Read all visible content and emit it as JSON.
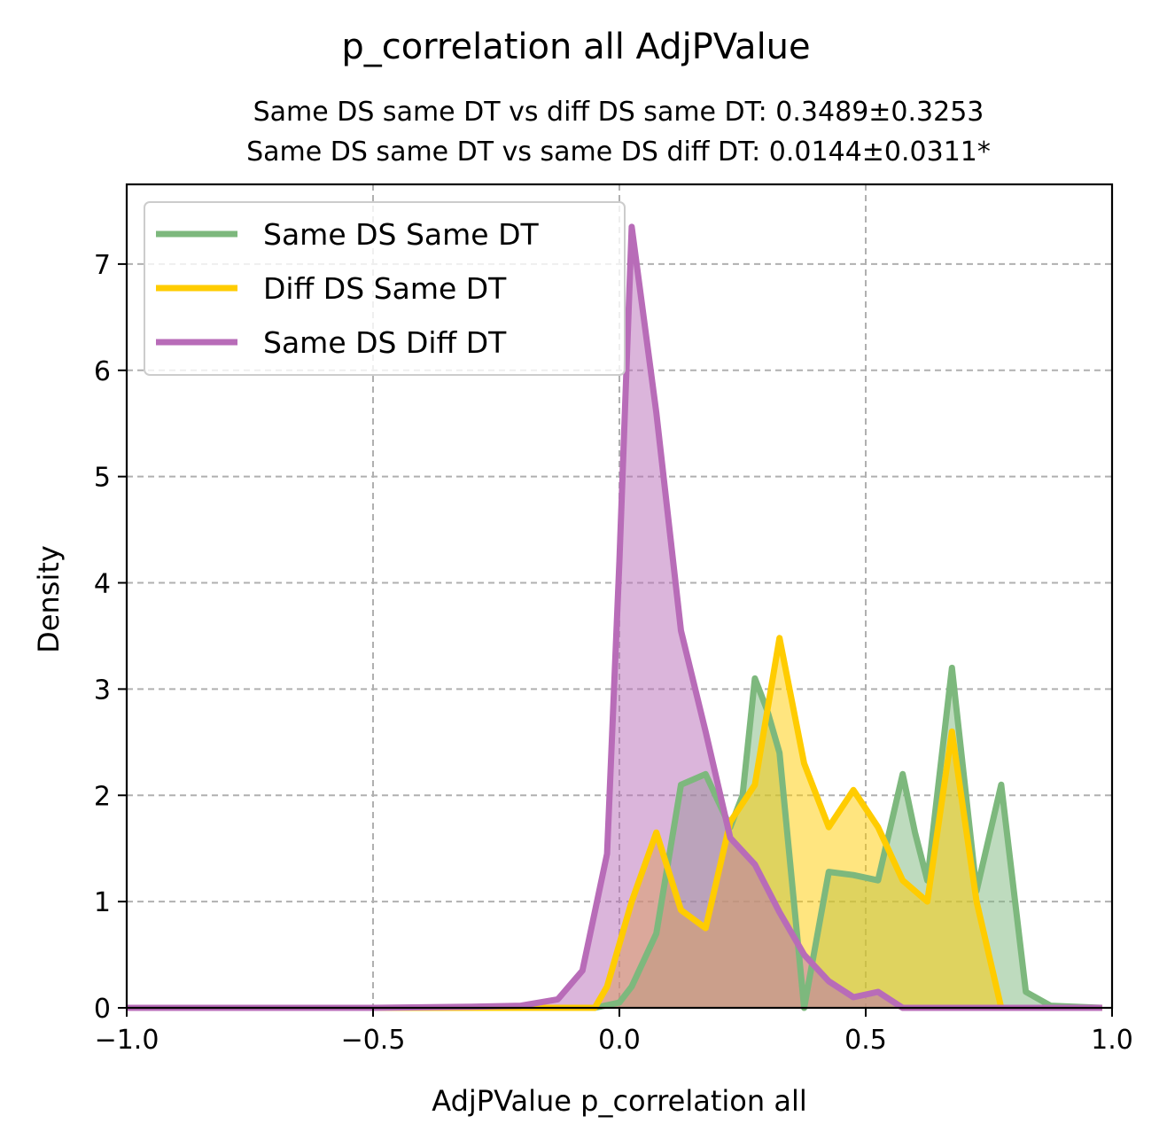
{
  "chart_data": {
    "type": "area",
    "title": "p_correlation all AdjPValue",
    "subtitle_lines": [
      "Same DS same DT vs diff DS same DT: 0.3489±0.3253",
      "Same DS same DT vs same DS diff DT: 0.0144±0.0311*"
    ],
    "xlabel": "AdjPValue p_correlation all",
    "ylabel": "Density",
    "xlim": [
      -1.0,
      1.0
    ],
    "ylim": [
      0,
      7.75
    ],
    "x_ticks": [
      -1.0,
      -0.5,
      0.0,
      0.5,
      1.0
    ],
    "x_tick_labels": [
      "−1.0",
      "−0.5",
      "0.0",
      "0.5",
      "1.0"
    ],
    "y_ticks": [
      0,
      1,
      2,
      3,
      4,
      5,
      6,
      7
    ],
    "y_tick_labels": [
      "0",
      "1",
      "2",
      "3",
      "4",
      "5",
      "6",
      "7"
    ],
    "grid": true,
    "legend_position": "top-left",
    "series": [
      {
        "name": "Same DS Same DT",
        "color": "#7db87d",
        "fill": "rgba(125,184,125,0.5)",
        "points": [
          [
            -1.0,
            0
          ],
          [
            -0.2,
            0
          ],
          [
            -0.05,
            0
          ],
          [
            0.0,
            0.05
          ],
          [
            0.025,
            0.2
          ],
          [
            0.075,
            0.7
          ],
          [
            0.125,
            2.1
          ],
          [
            0.175,
            2.2
          ],
          [
            0.225,
            1.7
          ],
          [
            0.25,
            2.0
          ],
          [
            0.275,
            3.1
          ],
          [
            0.3,
            2.8
          ],
          [
            0.325,
            2.4
          ],
          [
            0.375,
            0
          ],
          [
            0.425,
            1.28
          ],
          [
            0.475,
            1.25
          ],
          [
            0.525,
            1.2
          ],
          [
            0.575,
            2.2
          ],
          [
            0.6,
            1.65
          ],
          [
            0.625,
            1.2
          ],
          [
            0.675,
            3.2
          ],
          [
            0.725,
            1.1
          ],
          [
            0.775,
            2.1
          ],
          [
            0.825,
            0.15
          ],
          [
            0.875,
            0.02
          ],
          [
            0.98,
            0
          ]
        ]
      },
      {
        "name": "Diff DS Same DT",
        "color": "#ffcc00",
        "fill": "rgba(255,204,0,0.5)",
        "points": [
          [
            -1.0,
            0
          ],
          [
            -0.1,
            0
          ],
          [
            -0.05,
            0
          ],
          [
            -0.025,
            0.2
          ],
          [
            0.025,
            1.0
          ],
          [
            0.075,
            1.65
          ],
          [
            0.125,
            0.92
          ],
          [
            0.175,
            0.75
          ],
          [
            0.225,
            1.75
          ],
          [
            0.275,
            2.1
          ],
          [
            0.325,
            3.48
          ],
          [
            0.375,
            2.3
          ],
          [
            0.425,
            1.7
          ],
          [
            0.475,
            2.05
          ],
          [
            0.525,
            1.7
          ],
          [
            0.575,
            1.2
          ],
          [
            0.625,
            1.0
          ],
          [
            0.675,
            2.6
          ],
          [
            0.725,
            1.0
          ],
          [
            0.775,
            0.0
          ],
          [
            0.98,
            0
          ]
        ]
      },
      {
        "name": "Same DS Diff DT",
        "color": "#b86cb8",
        "fill": "rgba(184,108,184,0.5)",
        "points": [
          [
            -1.0,
            0
          ],
          [
            -0.5,
            0
          ],
          [
            -0.3,
            0.01
          ],
          [
            -0.2,
            0.02
          ],
          [
            -0.125,
            0.08
          ],
          [
            -0.075,
            0.35
          ],
          [
            -0.025,
            1.45
          ],
          [
            0.0,
            4.2
          ],
          [
            0.025,
            7.35
          ],
          [
            0.075,
            5.6
          ],
          [
            0.125,
            3.55
          ],
          [
            0.175,
            2.6
          ],
          [
            0.225,
            1.6
          ],
          [
            0.275,
            1.35
          ],
          [
            0.325,
            0.9
          ],
          [
            0.375,
            0.5
          ],
          [
            0.425,
            0.25
          ],
          [
            0.475,
            0.1
          ],
          [
            0.525,
            0.15
          ],
          [
            0.575,
            0.0
          ],
          [
            0.98,
            0
          ]
        ]
      }
    ]
  }
}
